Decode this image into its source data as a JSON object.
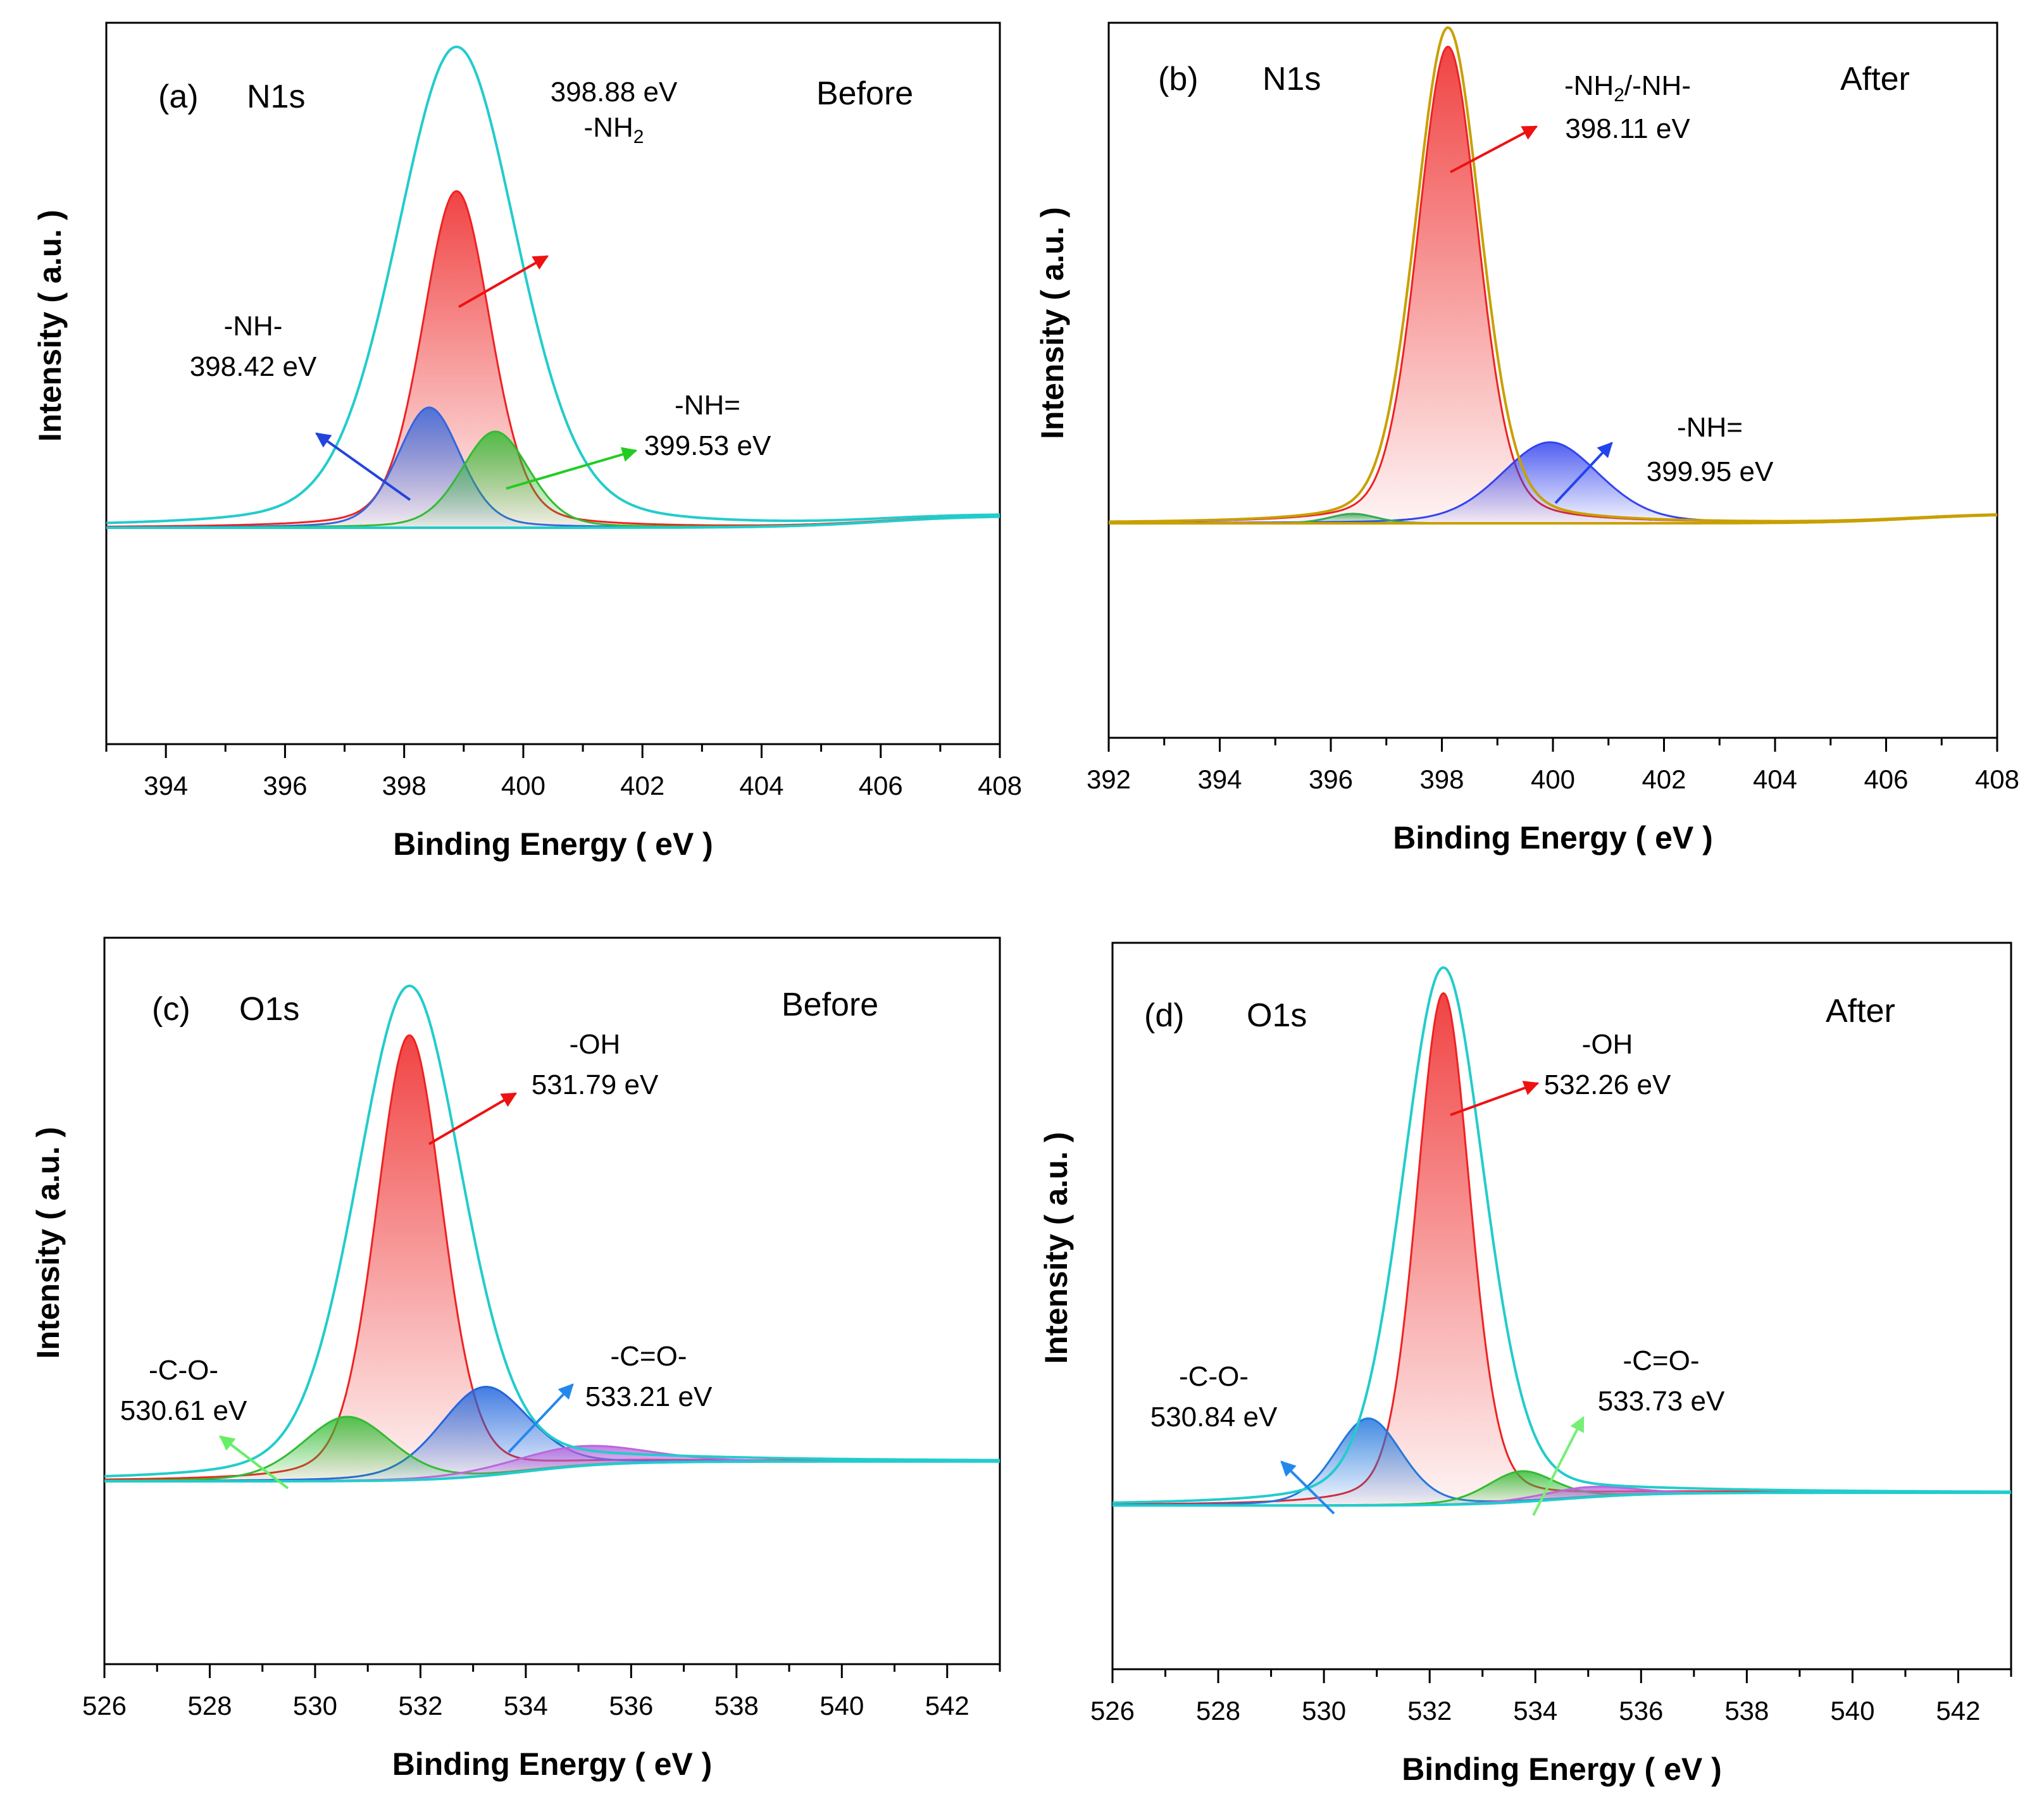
{
  "chart_data": [
    {
      "panel": "(a)",
      "type": "line",
      "element": "N1s",
      "state": "Before",
      "xlabel": "Binding Energy ( eV )",
      "ylabel": "Intensity ( a.u. )",
      "xlim": [
        393,
        408
      ],
      "ylim": [
        -0.45,
        1.05
      ],
      "xticks": [
        394,
        396,
        398,
        400,
        402,
        404,
        406,
        408
      ],
      "baseline": {
        "y0": 0,
        "slope": 0.025,
        "rise_center": 406.0
      },
      "peaks": [
        {
          "name": "-NH2",
          "center": 398.88,
          "height": 0.7,
          "width": 1.35,
          "color": "#ee2222"
        },
        {
          "name": "-NH-",
          "center": 398.42,
          "height": 0.25,
          "width": 1.25,
          "color": "#3366dd"
        },
        {
          "name": "-NH=",
          "center": 399.53,
          "height": 0.2,
          "width": 1.35,
          "color": "#33bb33"
        }
      ],
      "envelope": {
        "color": "#22cccc",
        "center": 398.88,
        "height": 1.0,
        "width": 2.4
      },
      "annotations": [
        {
          "lines": [
            "398.88 eV",
            "-NH2"
          ],
          "color": "#ee1111"
        },
        {
          "lines": [
            "-NH-",
            "398.42 eV"
          ],
          "color": "#2244dd"
        },
        {
          "lines": [
            "-NH=",
            "399.53 eV"
          ],
          "color": "#22cc22"
        }
      ]
    },
    {
      "panel": "(b)",
      "type": "line",
      "element": "N1s",
      "state": "After",
      "xlabel": "Binding Energy ( eV )",
      "ylabel": "Intensity ( a.u. )",
      "xlim": [
        392,
        408
      ],
      "ylim": [
        -0.45,
        1.05
      ],
      "xticks": [
        392,
        394,
        396,
        398,
        400,
        402,
        404,
        406,
        408
      ],
      "baseline": {
        "y0": 0,
        "slope": 0.02,
        "rise_center": 406.5
      },
      "peaks": [
        {
          "name": "-NH2/-NH-",
          "center": 398.11,
          "height": 1.0,
          "width": 1.3,
          "color": "#ee2222"
        },
        {
          "name": "-NH=",
          "center": 399.95,
          "height": 0.17,
          "width": 2.1,
          "color": "#3344ee"
        },
        {
          "name": "minor",
          "center": 396.4,
          "height": 0.02,
          "width": 1.0,
          "color": "#33aa55"
        }
      ],
      "envelope": {
        "color": "#c8a000",
        "center": 398.11,
        "height": 1.04,
        "width": 1.4
      },
      "annotations": [
        {
          "lines": [
            "-NH2/-NH-",
            "398.11 eV"
          ],
          "color": "#ee1111"
        },
        {
          "lines": [
            "-NH=",
            "399.95 eV"
          ],
          "color": "#2244ee"
        }
      ]
    },
    {
      "panel": "(c)",
      "type": "line",
      "element": "O1s",
      "state": "Before",
      "xlabel": "Binding Energy ( eV )",
      "ylabel": "Intensity ( a.u. )",
      "xlim": [
        526,
        543
      ],
      "ylim": [
        -0.37,
        1.1
      ],
      "xticks": [
        526,
        528,
        530,
        532,
        534,
        536,
        538,
        540,
        542
      ],
      "baseline": {
        "y0": 0,
        "slope": 0.04,
        "rise_center": 534.0
      },
      "peaks": [
        {
          "name": "-OH",
          "center": 531.79,
          "height": 0.9,
          "width": 1.5,
          "color": "#ee2222"
        },
        {
          "name": "-C-O-",
          "center": 530.61,
          "height": 0.13,
          "width": 2.0,
          "color": "#33bb33"
        },
        {
          "name": "-C=O-",
          "center": 533.21,
          "height": 0.18,
          "width": 2.0,
          "color": "#2266dd"
        },
        {
          "name": "minor",
          "center": 535.0,
          "height": 0.04,
          "width": 3.0,
          "color": "#bb66dd"
        }
      ],
      "envelope": {
        "color": "#22cccc",
        "center": 531.79,
        "height": 1.0,
        "width": 2.4
      },
      "annotations": [
        {
          "lines": [
            "-OH",
            "531.79 eV"
          ],
          "color": "#ee1111"
        },
        {
          "lines": [
            "-C-O-",
            "530.61 eV"
          ],
          "color": "#66ee66"
        },
        {
          "lines": [
            "-C=O-",
            "533.21 eV"
          ],
          "color": "#2288ee"
        }
      ]
    },
    {
      "panel": "(d)",
      "type": "line",
      "element": "O1s",
      "state": "After",
      "xlabel": "Binding Energy ( eV )",
      "ylabel": "Intensity ( a.u. )",
      "xlim": [
        526,
        543
      ],
      "ylim": [
        -0.32,
        1.1
      ],
      "xticks": [
        526,
        528,
        530,
        532,
        534,
        536,
        538,
        540,
        542
      ],
      "baseline": {
        "y0": 0,
        "slope": 0.025,
        "rise_center": 534.5
      },
      "peaks": [
        {
          "name": "-OH",
          "center": 532.26,
          "height": 1.0,
          "width": 1.2,
          "color": "#ee2222"
        },
        {
          "name": "-C-O-",
          "center": 530.84,
          "height": 0.17,
          "width": 1.5,
          "color": "#2277dd"
        },
        {
          "name": "-C=O-",
          "center": 533.73,
          "height": 0.06,
          "width": 1.5,
          "color": "#33bb33"
        },
        {
          "name": "minor",
          "center": 535.0,
          "height": 0.02,
          "width": 2.0,
          "color": "#bb66dd"
        }
      ],
      "envelope": {
        "color": "#22cccc",
        "center": 532.26,
        "height": 1.05,
        "width": 1.85
      },
      "annotations": [
        {
          "lines": [
            "-OH",
            "532.26 eV"
          ],
          "color": "#ee1111"
        },
        {
          "lines": [
            "-C-O-",
            "530.84 eV"
          ],
          "color": "#2288ee"
        },
        {
          "lines": [
            "-C=O-",
            "533.73 eV"
          ],
          "color": "#77ee77"
        }
      ]
    }
  ]
}
